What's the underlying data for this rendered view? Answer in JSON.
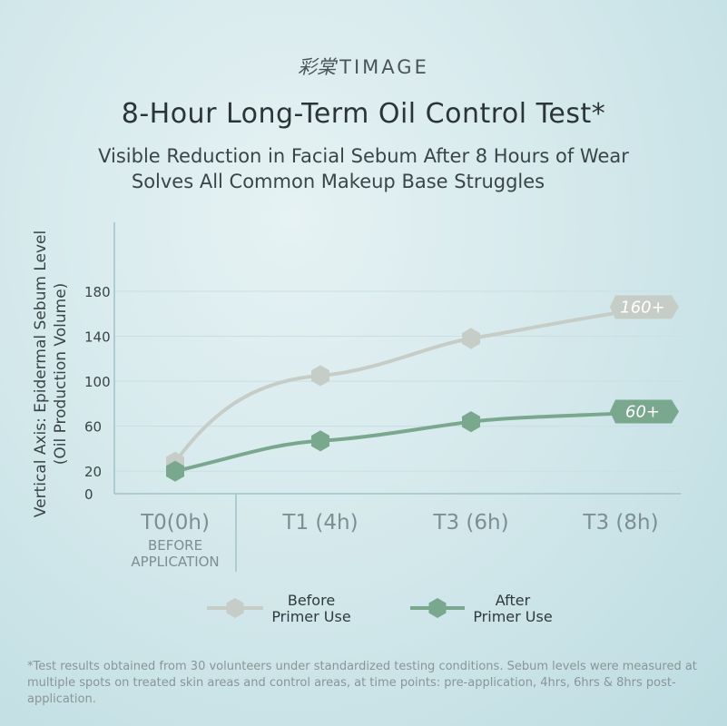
{
  "brand": {
    "glyph": "彩棠",
    "name": "TIMAGE"
  },
  "header": {
    "title": "8-Hour Long-Term Oil Control Test*",
    "subtitle_line1": "Visible Reduction in Facial Sebum After 8 Hours of Wear",
    "subtitle_line2": "Solves All Common Makeup Base Struggles"
  },
  "chart_data": {
    "type": "line",
    "ylabel_line1": "Vertical Axis: Epidermal Sebum Level",
    "ylabel_line2": "(Oil Production Volume)",
    "categories": [
      "T0(0h)",
      "T1 (4h)",
      "T3 (6h)",
      "T3 (8h)"
    ],
    "category_note": [
      "BEFORE",
      "APPLICATION"
    ],
    "yticks": [
      0,
      20,
      60,
      100,
      140,
      180
    ],
    "ylim": [
      0,
      180
    ],
    "grid": true,
    "series": [
      {
        "name": "Before Primer Use",
        "values": [
          28,
          105,
          138,
          166
        ],
        "end_label": "160+",
        "color": "#c6cdc6"
      },
      {
        "name": "After Primer Use",
        "values": [
          20,
          47,
          64,
          73
        ],
        "end_label": "60+",
        "color": "#7aa88e"
      }
    ],
    "legend": [
      {
        "line1": "Before",
        "line2": "Primer Use"
      },
      {
        "line1": "After",
        "line2": "Primer Use"
      }
    ]
  },
  "footnote": "*Test results obtained from 30 volunteers under standardized testing conditions. Sebum levels were measured at multiple spots on treated skin areas and control areas, at time points: pre-application, 4hrs, 6hrs & 8hrs post-application."
}
